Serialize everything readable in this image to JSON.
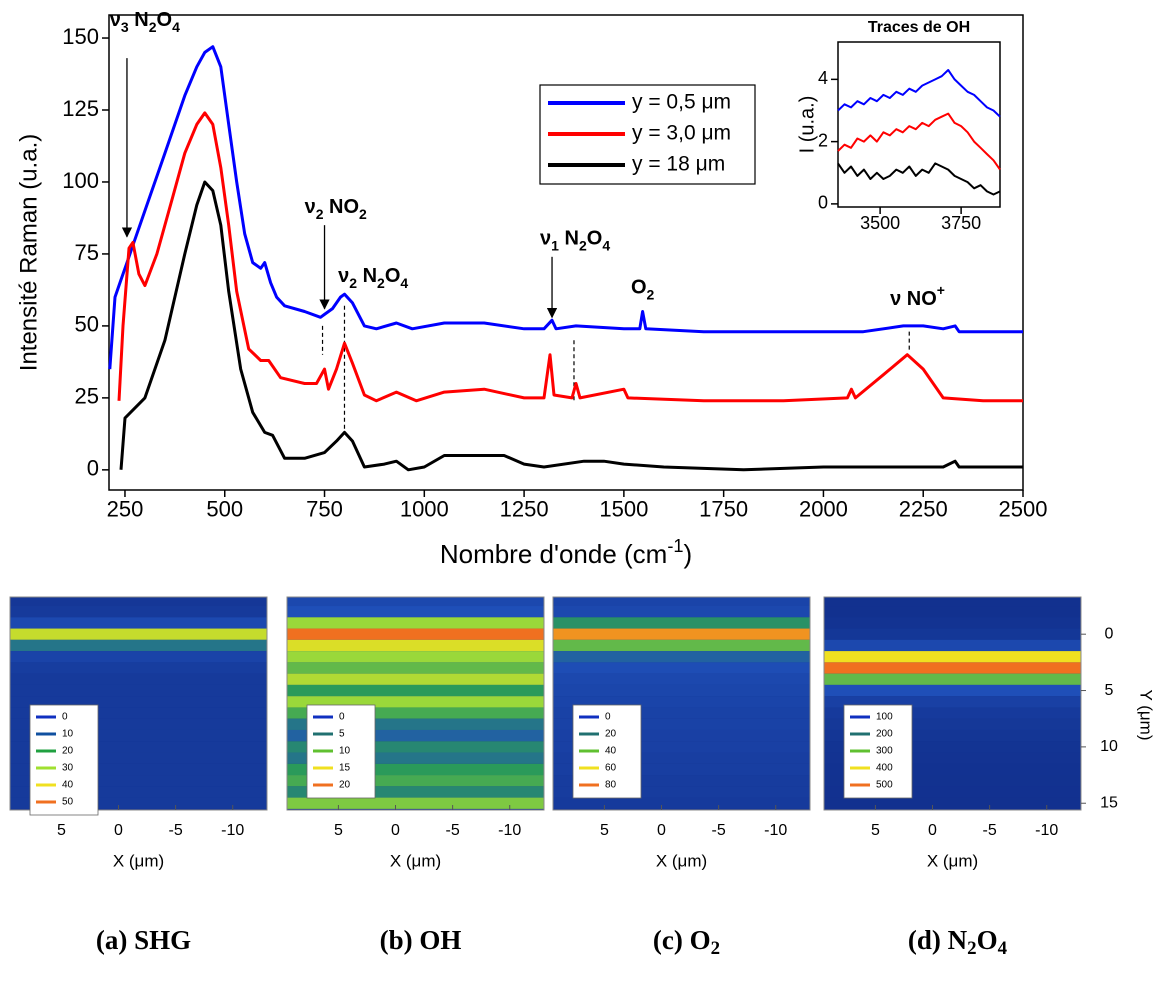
{
  "chart_data": [
    {
      "type": "line",
      "ylabel": "Intensité Raman (u.a.)",
      "xlabel": [
        {
          "t": "Nombre d'onde (cm"
        },
        {
          "t": "-1",
          "sup": true
        },
        {
          "t": ")"
        }
      ],
      "xlim": [
        210,
        2500
      ],
      "ylim": [
        -7,
        158
      ],
      "xticks": [
        250,
        500,
        750,
        1000,
        1250,
        1500,
        1750,
        2000,
        2250,
        2500
      ],
      "yticks": [
        0,
        25,
        50,
        75,
        100,
        125,
        150
      ],
      "legend": "top-right",
      "series": [
        {
          "name": "y = 0,5 μm",
          "color": "#0000ff",
          "x": [
            212,
            225,
            240,
            255,
            270,
            300,
            350,
            400,
            430,
            450,
            470,
            490,
            510,
            530,
            550,
            570,
            590,
            600,
            615,
            630,
            650,
            700,
            740,
            750,
            770,
            790,
            800,
            820,
            850,
            880,
            930,
            970,
            1050,
            1150,
            1250,
            1300,
            1320,
            1330,
            1380,
            1500,
            1540,
            1547,
            1555,
            1700,
            1900,
            2100,
            2200,
            2250,
            2300,
            2330,
            2340,
            2500
          ],
          "values": [
            35,
            60,
            66,
            72,
            78,
            90,
            110,
            130,
            140,
            145,
            147,
            140,
            120,
            100,
            82,
            72,
            70,
            72,
            65,
            60,
            57,
            55,
            53,
            54,
            56,
            60,
            61,
            58,
            50,
            49,
            51,
            49,
            51,
            51,
            49,
            49,
            52,
            49,
            50,
            49,
            49,
            55,
            49,
            48,
            48,
            48,
            50,
            50,
            49,
            50,
            48,
            48
          ]
        },
        {
          "name": "y = 3,0 μm",
          "color": "#ff0000",
          "x": [
            235,
            245,
            260,
            270,
            285,
            300,
            330,
            370,
            400,
            430,
            450,
            470,
            490,
            510,
            530,
            560,
            590,
            610,
            640,
            700,
            730,
            750,
            760,
            780,
            800,
            820,
            850,
            880,
            930,
            980,
            1050,
            1150,
            1250,
            1300,
            1315,
            1325,
            1370,
            1380,
            1390,
            1500,
            1510,
            1700,
            1900,
            2060,
            2070,
            2080,
            2150,
            2210,
            2250,
            2300,
            2400,
            2500
          ],
          "values": [
            24,
            50,
            77,
            79,
            68,
            64,
            75,
            95,
            110,
            120,
            124,
            120,
            105,
            85,
            62,
            42,
            38,
            38,
            32,
            30,
            30,
            35,
            28,
            35,
            44,
            37,
            26,
            24,
            27,
            24,
            27,
            28,
            25,
            25,
            40,
            26,
            25,
            30,
            25,
            28,
            25,
            24,
            24,
            25,
            28,
            25,
            33,
            40,
            35,
            25,
            24,
            24
          ]
        },
        {
          "name": "y = 18 μm",
          "color": "#000000",
          "x": [
            240,
            250,
            300,
            350,
            400,
            430,
            450,
            470,
            490,
            510,
            540,
            570,
            600,
            620,
            650,
            700,
            750,
            780,
            800,
            820,
            850,
            900,
            930,
            960,
            1000,
            1050,
            1150,
            1200,
            1250,
            1300,
            1400,
            1450,
            1500,
            1600,
            1800,
            2000,
            2300,
            2330,
            2340,
            2500
          ],
          "values": [
            0,
            18,
            25,
            45,
            75,
            92,
            100,
            97,
            85,
            62,
            35,
            20,
            13,
            12,
            4,
            4,
            6,
            10,
            13,
            10,
            1,
            2,
            3,
            0,
            1,
            5,
            5,
            5,
            2,
            1,
            3,
            3,
            2,
            1,
            0,
            1,
            1,
            3,
            1,
            1
          ]
        }
      ],
      "annotations": [
        {
          "label": [
            {
              "t": "ν"
            },
            {
              "t": "3",
              "sub": true
            },
            {
              "t": " N"
            },
            {
              "t": "2",
              "sub": true
            },
            {
              "t": "O"
            },
            {
              "t": "4",
              "sub": true
            }
          ],
          "x": 212,
          "y": 156,
          "anchor": "start",
          "arrow": [
            255,
            143,
            81
          ]
        },
        {
          "label": [
            {
              "t": "ν"
            },
            {
              "t": "2",
              "sub": true
            },
            {
              "t": " NO"
            },
            {
              "t": "2",
              "sub": true
            }
          ],
          "x": 700,
          "y": 91,
          "anchor": "start",
          "arrow": [
            750,
            85,
            56
          ]
        },
        {
          "label": [
            {
              "t": "ν"
            },
            {
              "t": "2",
              "sub": true
            },
            {
              "t": " N"
            },
            {
              "t": "2",
              "sub": true
            },
            {
              "t": "O"
            },
            {
              "t": "4",
              "sub": true
            }
          ],
          "x": 784,
          "y": 67,
          "anchor": "start"
        },
        {
          "label": [
            {
              "t": "ν"
            },
            {
              "t": "1",
              "sub": true
            },
            {
              "t": " N"
            },
            {
              "t": "2",
              "sub": true
            },
            {
              "t": "O"
            },
            {
              "t": "4",
              "sub": true
            }
          ],
          "x": 1290,
          "y": 80,
          "anchor": "start",
          "arrow": [
            1320,
            74,
            53
          ]
        },
        {
          "label": [
            {
              "t": "O"
            },
            {
              "t": "2",
              "sub": true
            }
          ],
          "x": 1547,
          "y": 63,
          "anchor": "middle"
        },
        {
          "label": [
            {
              "t": "ν NO"
            },
            {
              "t": "+",
              "sup": true
            }
          ],
          "x": 2167,
          "y": 59,
          "anchor": "start"
        }
      ],
      "guides": [
        {
          "x": 745,
          "y": [
            50,
            40
          ]
        },
        {
          "x": 800,
          "y": [
            57,
            14
          ]
        },
        {
          "x": 1375,
          "y": [
            45,
            24
          ]
        },
        {
          "x": 2215,
          "y": [
            48,
            41
          ]
        }
      ]
    },
    {
      "type": "line",
      "title": "Traces de OH",
      "ylabel": "I (u.a.)",
      "xlim": [
        3370,
        3870
      ],
      "ylim": [
        -0.1,
        5.2
      ],
      "xticks": [
        3500,
        3750
      ],
      "yticks": [
        0,
        2,
        4
      ],
      "series": [
        {
          "color": "#0000ff",
          "x": [
            3370,
            3390,
            3410,
            3430,
            3450,
            3470,
            3490,
            3510,
            3530,
            3550,
            3570,
            3590,
            3610,
            3630,
            3650,
            3670,
            3690,
            3710,
            3730,
            3750,
            3770,
            3790,
            3810,
            3830,
            3850,
            3870
          ],
          "values": [
            3.0,
            3.2,
            3.1,
            3.3,
            3.2,
            3.4,
            3.3,
            3.5,
            3.4,
            3.6,
            3.5,
            3.7,
            3.6,
            3.8,
            3.9,
            4.0,
            4.1,
            4.3,
            4.0,
            3.8,
            3.6,
            3.5,
            3.3,
            3.1,
            3.0,
            2.8
          ]
        },
        {
          "color": "#ff0000",
          "x": [
            3370,
            3390,
            3410,
            3430,
            3450,
            3470,
            3490,
            3510,
            3530,
            3550,
            3570,
            3590,
            3610,
            3630,
            3650,
            3670,
            3690,
            3710,
            3730,
            3750,
            3770,
            3790,
            3810,
            3830,
            3850,
            3870
          ],
          "values": [
            1.7,
            1.9,
            1.8,
            2.1,
            2.0,
            2.2,
            2.0,
            2.3,
            2.2,
            2.4,
            2.3,
            2.5,
            2.4,
            2.6,
            2.5,
            2.7,
            2.8,
            2.9,
            2.6,
            2.5,
            2.3,
            2.0,
            1.8,
            1.6,
            1.4,
            1.1
          ]
        },
        {
          "color": "#000000",
          "x": [
            3370,
            3390,
            3410,
            3430,
            3450,
            3470,
            3490,
            3510,
            3530,
            3550,
            3570,
            3590,
            3610,
            3630,
            3650,
            3670,
            3690,
            3710,
            3730,
            3750,
            3770,
            3790,
            3810,
            3830,
            3850,
            3870
          ],
          "values": [
            1.3,
            1.0,
            1.2,
            0.9,
            1.1,
            0.8,
            1.0,
            0.8,
            0.9,
            1.1,
            1.0,
            1.2,
            0.9,
            1.1,
            1.0,
            1.3,
            1.2,
            1.1,
            0.9,
            0.8,
            0.7,
            0.5,
            0.6,
            0.4,
            0.3,
            0.4
          ]
        }
      ]
    },
    {
      "type": "heatmap",
      "caption": [
        {
          "t": "(a) SHG"
        }
      ],
      "xlabel": "X  (μm)",
      "xlim": [
        9.5,
        -13
      ],
      "ylim": [
        -3.3,
        15.6
      ],
      "xticks": [
        5,
        0,
        -5,
        -10
      ],
      "colormap": [
        "#12318f",
        "#1f4fb8",
        "#2a9a5a",
        "#9ad83a",
        "#f0e020",
        "#f07020"
      ],
      "levels": [
        0,
        10,
        20,
        30,
        40,
        50
      ],
      "level_colors": [
        "#1030c0",
        "#1050a0",
        "#20a040",
        "#a0e030",
        "#f0e020",
        "#f07020"
      ],
      "y": [
        -3,
        -2,
        -1,
        0,
        1,
        2,
        3,
        4,
        5,
        6,
        7,
        8,
        9,
        10,
        11,
        12,
        13,
        14,
        15
      ],
      "values": [
        2,
        3,
        8,
        35,
        15,
        6,
        4,
        3,
        3,
        3,
        3,
        3,
        3,
        3,
        3,
        3,
        3,
        3,
        3
      ]
    },
    {
      "type": "heatmap",
      "caption": [
        {
          "t": "(b) OH"
        }
      ],
      "xlabel": "X  (μm)",
      "xlim": [
        9.5,
        -13
      ],
      "ylim": [
        -3.3,
        15.6
      ],
      "xticks": [
        5,
        0,
        -5,
        -10
      ],
      "colormap": [
        "#12318f",
        "#1f4fb8",
        "#2a9a5a",
        "#9ad83a",
        "#f0e020",
        "#f07020"
      ],
      "levels": [
        0,
        5,
        10,
        15,
        20
      ],
      "level_colors": [
        "#1030c0",
        "#207070",
        "#60c030",
        "#f0e020",
        "#f07020"
      ],
      "y": [
        -3,
        -2,
        -1,
        0,
        1,
        2,
        3,
        4,
        5,
        6,
        7,
        8,
        9,
        10,
        11,
        12,
        13,
        14,
        15
      ],
      "values": [
        3,
        4,
        12,
        20,
        15,
        12,
        10,
        13,
        8,
        12,
        9,
        6,
        5,
        7,
        6,
        8,
        9,
        7,
        11
      ]
    },
    {
      "type": "heatmap",
      "caption": [
        {
          "t": "(c) O"
        },
        {
          "t": "2",
          "sub": true
        }
      ],
      "xlabel": "X  (μm)",
      "xlim": [
        9.5,
        -13
      ],
      "ylim": [
        -3.3,
        15.6
      ],
      "xticks": [
        5,
        0,
        -5,
        -10
      ],
      "colormap": [
        "#12318f",
        "#1f4fb8",
        "#2a9a5a",
        "#9ad83a",
        "#f0e020",
        "#f07020"
      ],
      "levels": [
        0,
        20,
        40,
        60,
        80
      ],
      "level_colors": [
        "#1030c0",
        "#207070",
        "#60c030",
        "#f0e020",
        "#f07020"
      ],
      "y": [
        -3,
        -2,
        -1,
        0,
        1,
        2,
        3,
        4,
        5,
        6,
        7,
        8,
        9,
        10,
        11,
        12,
        13,
        14,
        15
      ],
      "values": [
        10,
        12,
        30,
        75,
        40,
        20,
        15,
        12,
        11,
        10,
        9,
        9,
        8,
        8,
        7,
        7,
        6,
        6,
        5
      ]
    },
    {
      "type": "heatmap",
      "caption": [
        {
          "t": "(d) N"
        },
        {
          "t": "2",
          "sub": true
        },
        {
          "t": "O"
        },
        {
          "t": "4",
          "sub": true
        }
      ],
      "xlabel": "X  (μm)",
      "ylabel": "Y (μm)",
      "xlim": [
        9.5,
        -13
      ],
      "ylim": [
        -3.3,
        15.6
      ],
      "xticks": [
        5,
        0,
        -5,
        -10
      ],
      "yticks": [
        0,
        5,
        10,
        15
      ],
      "colormap": [
        "#12318f",
        "#1f4fb8",
        "#2a9a5a",
        "#9ad83a",
        "#f0e020",
        "#f07020"
      ],
      "levels": [
        100,
        200,
        300,
        400,
        500
      ],
      "level_colors": [
        "#1030c0",
        "#207070",
        "#60c030",
        "#f0e020",
        "#f07020"
      ],
      "y": [
        -3,
        -2,
        -1,
        0,
        1,
        2,
        3,
        4,
        5,
        6,
        7,
        8,
        9,
        10,
        11,
        12,
        13,
        14,
        15
      ],
      "values": [
        100,
        100,
        105,
        115,
        160,
        420,
        500,
        300,
        180,
        140,
        125,
        118,
        112,
        108,
        105,
        103,
        102,
        101,
        100
      ]
    }
  ]
}
